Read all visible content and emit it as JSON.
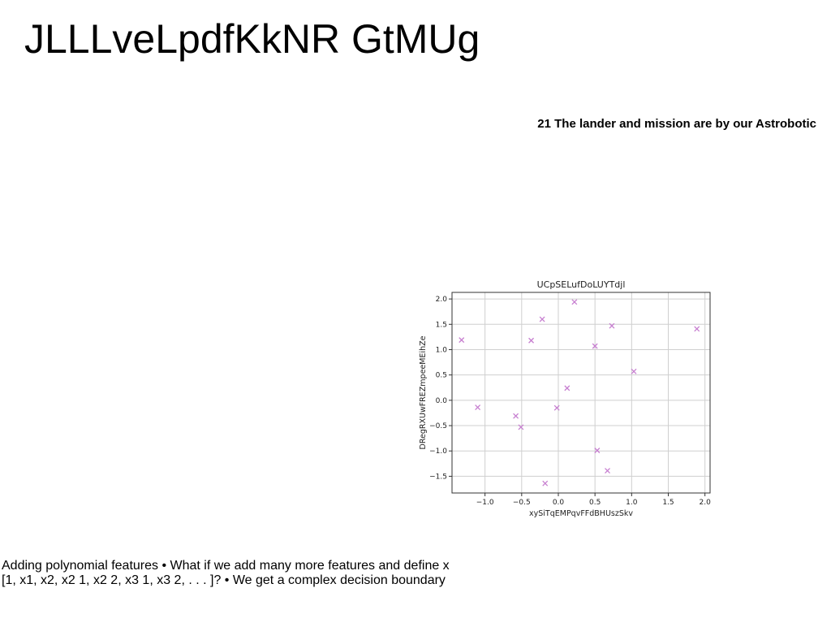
{
  "slide": {
    "title": "JLLLveLpdfKkNR GtMUg",
    "subhead": "21 The lander and mission are by our Astrobotic",
    "caption": "Adding polynomial features • What if we add many more features and define x [1, x1, x2, x2 1, x2 2, x3 1, x3 2, . . . ]? • We get a complex decision boundary"
  },
  "chart_data": {
    "type": "scatter",
    "title": "UCpSELufDoLUYTdjl",
    "xlabel": "xySiTqEMPqvFFdBHUszSkv",
    "ylabel": "DRegRXUwFREZmpeeMEihZe",
    "xlim": [
      -1.45,
      2.07
    ],
    "ylim": [
      -1.83,
      2.13
    ],
    "xticks": [
      -1.0,
      -0.5,
      0.0,
      0.5,
      1.0,
      1.5,
      2.0
    ],
    "yticks": [
      -1.5,
      -1.0,
      -0.5,
      0.0,
      0.5,
      1.0,
      1.5,
      2.0
    ],
    "grid": true,
    "marker": "x",
    "color": "#c77fd0",
    "points": [
      {
        "x": -1.32,
        "y": 1.19
      },
      {
        "x": -1.1,
        "y": -0.14
      },
      {
        "x": -0.58,
        "y": -0.31
      },
      {
        "x": -0.51,
        "y": -0.53
      },
      {
        "x": -0.37,
        "y": 1.18
      },
      {
        "x": -0.22,
        "y": 1.6
      },
      {
        "x": -0.18,
        "y": -1.64
      },
      {
        "x": -0.02,
        "y": -0.15
      },
      {
        "x": 0.12,
        "y": 0.24
      },
      {
        "x": 0.22,
        "y": 1.94
      },
      {
        "x": 0.5,
        "y": 1.07
      },
      {
        "x": 0.53,
        "y": -0.99
      },
      {
        "x": 0.67,
        "y": -1.39
      },
      {
        "x": 0.73,
        "y": 1.47
      },
      {
        "x": 1.03,
        "y": 0.57
      },
      {
        "x": 1.89,
        "y": 1.41
      }
    ]
  }
}
